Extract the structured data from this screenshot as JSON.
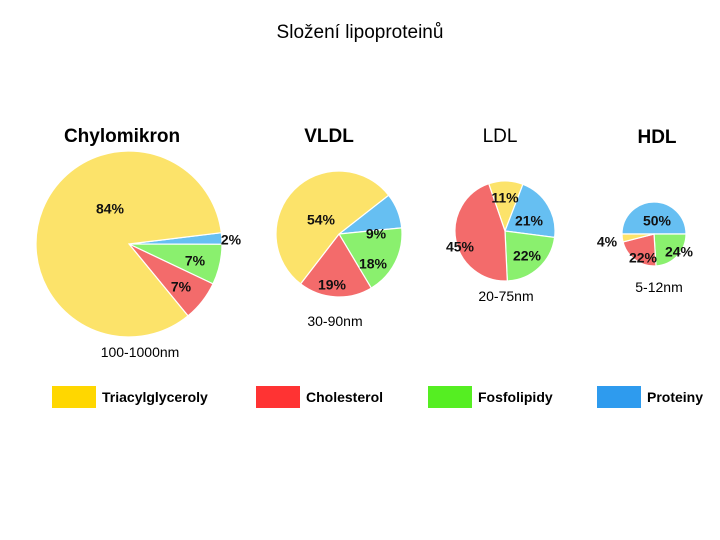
{
  "page_title": "Složení lipoproteinů",
  "chart_data": {
    "type": "pie",
    "title": "Složení lipoproteinů",
    "legend": [
      {
        "label": "Triacylglyceroly",
        "color": "#FFD700"
      },
      {
        "label": "Cholesterol",
        "color": "#FF3333"
      },
      {
        "label": "Fosfolipidy",
        "color": "#55EE22"
      },
      {
        "label": "Proteiny",
        "color": "#2E9BEE"
      }
    ],
    "pies": [
      {
        "name": "Chylomikron",
        "size_label": "100-1000nm",
        "slices": [
          {
            "component": "Triacylglyceroly",
            "value": 84,
            "label": "84%",
            "color": "#FCE36A"
          },
          {
            "component": "Cholesterol",
            "value": 7,
            "label": "7%",
            "color": "#F36B6B"
          },
          {
            "component": "Fosfolipidy",
            "value": 7,
            "label": "7%",
            "color": "#8AF06E"
          },
          {
            "component": "Proteiny",
            "value": 2,
            "label": "2%",
            "color": "#66BFF2"
          }
        ]
      },
      {
        "name": "VLDL",
        "size_label": "30-90nm",
        "slices": [
          {
            "component": "Triacylglyceroly",
            "value": 54,
            "label": "54%",
            "color": "#FCE36A"
          },
          {
            "component": "Cholesterol",
            "value": 19,
            "label": "19%",
            "color": "#F36B6B"
          },
          {
            "component": "Fosfolipidy",
            "value": 18,
            "label": "18%",
            "color": "#8AF06E"
          },
          {
            "component": "Proteiny",
            "value": 9,
            "label": "9%",
            "color": "#66BFF2"
          }
        ]
      },
      {
        "name": "LDL",
        "size_label": "20-75nm",
        "slices": [
          {
            "component": "Triacylglyceroly",
            "value": 11,
            "label": "11%",
            "color": "#FCE36A"
          },
          {
            "component": "Cholesterol",
            "value": 45,
            "label": "45%",
            "color": "#F36B6B"
          },
          {
            "component": "Fosfolipidy",
            "value": 22,
            "label": "22%",
            "color": "#8AF06E"
          },
          {
            "component": "Proteiny",
            "value": 21,
            "label": "21%",
            "color": "#66BFF2"
          }
        ]
      },
      {
        "name": "HDL",
        "size_label": "5-12nm",
        "slices": [
          {
            "component": "Triacylglyceroly",
            "value": 4,
            "label": "4%",
            "color": "#FCE36A"
          },
          {
            "component": "Cholesterol",
            "value": 22,
            "label": "22%",
            "color": "#F36B6B"
          },
          {
            "component": "Fosfolipidy",
            "value": 24,
            "label": "24%",
            "color": "#8AF06E"
          },
          {
            "component": "Proteiny",
            "value": 50,
            "label": "50%",
            "color": "#66BFF2"
          }
        ]
      }
    ]
  }
}
